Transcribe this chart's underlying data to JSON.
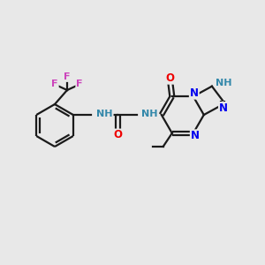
{
  "background_color": "#E8E8E8",
  "bond_color": "#1a1a1a",
  "atom_colors": {
    "N": "#0000EE",
    "O": "#EE0000",
    "F": "#CC44BB",
    "NH": "#3388AA",
    "C": "#1a1a1a"
  },
  "figsize": [
    3.0,
    3.0
  ],
  "dpi": 100
}
